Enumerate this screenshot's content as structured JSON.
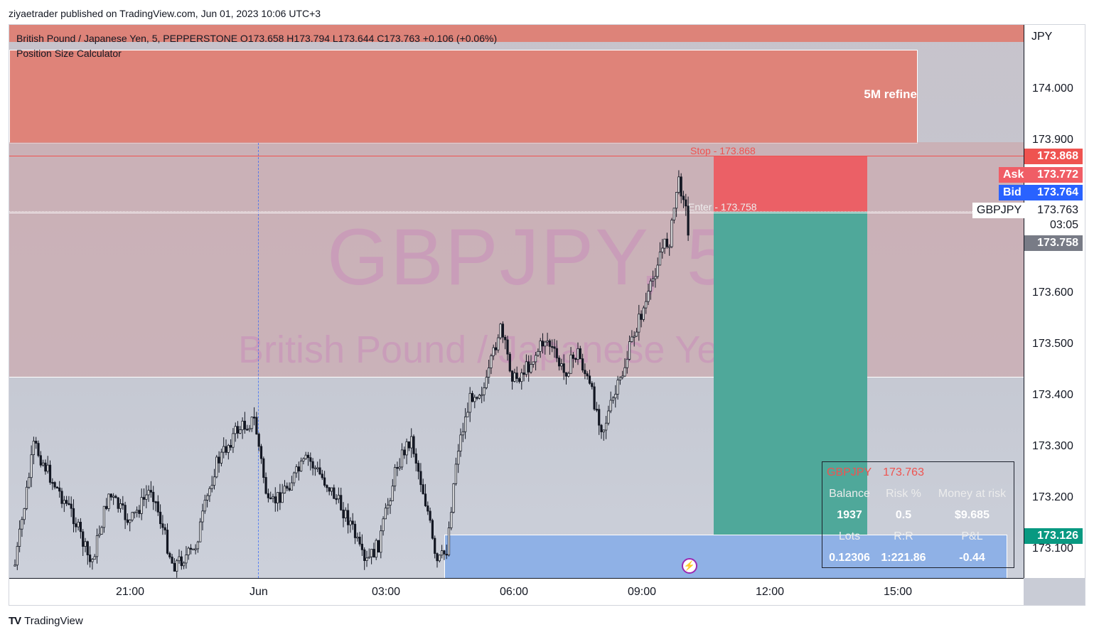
{
  "header": {
    "published_text": "ziyaetrader published on TradingView.com, Jun 01, 2023 10:06 UTC+3"
  },
  "chart": {
    "symbol_legend": "British Pound / Japanese Yen, 5, PEPPERSTONE  O173.658  H173.794  L173.644  C173.763  +0.106 (+0.06%)",
    "indicator_legend": "Position Size Calculator",
    "watermark_symbol": "GBPJPY, 5",
    "watermark_name": "British Pound / Japanese Yen",
    "zone_label": "5M refine",
    "stop_label": "Stop - 173.868",
    "entry_label": "Enter - 173.758",
    "currency": "JPY",
    "price_ticks": [
      "174.000",
      "173.900",
      "173.600",
      "173.500",
      "173.400",
      "173.300",
      "173.200",
      "173.100"
    ],
    "time_ticks": [
      "21:00",
      "Jun",
      "03:00",
      "06:00",
      "09:00",
      "12:00",
      "15:00"
    ],
    "tags": {
      "stop": "173.868",
      "ask_label": "Ask",
      "ask": "173.772",
      "bid_label": "Bid",
      "bid": "173.764",
      "last_symbol": "GBPJPY",
      "last": "173.763",
      "countdown": "03:05",
      "entry": "173.758",
      "target": "173.126"
    },
    "colors": {
      "stop": "#ef5350",
      "ask": "#f05d66",
      "bid": "#2962ff",
      "target": "#089981",
      "entry": "#787b86",
      "refine_zone": "#df8379",
      "tp_box": "#4fa89a",
      "blue_zone": "#8fb1e6"
    }
  },
  "calculator": {
    "symbol": "GBPJPY",
    "price": "173.763",
    "headers": [
      "Balance",
      "Risk %",
      "Money at risk"
    ],
    "values": [
      "1937",
      "0.5",
      "$9.685"
    ],
    "headers2": [
      "Lots",
      "R:R",
      "P&L"
    ],
    "values2": [
      "0.12306",
      "1:221.86",
      "-0.44"
    ]
  },
  "footer": {
    "brand": "TradingView",
    "logo_icon": "tradingview-logo-icon"
  }
}
